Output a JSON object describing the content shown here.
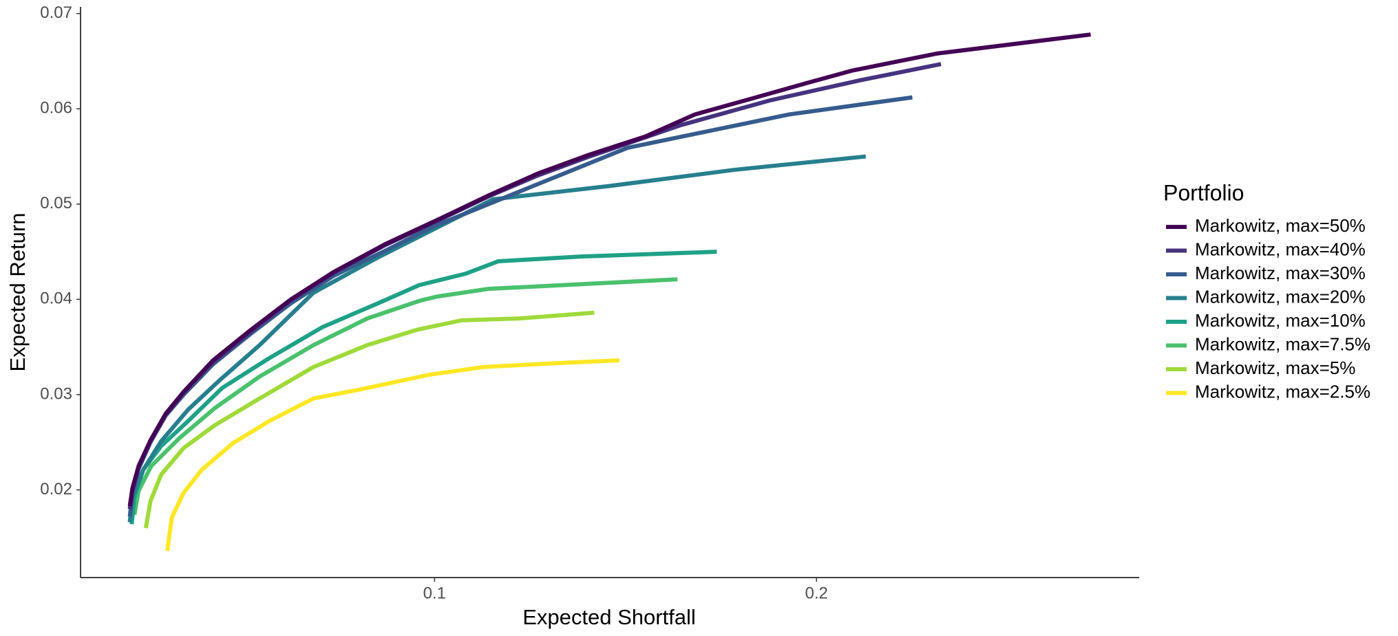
{
  "chart_data": {
    "type": "line",
    "x_label": "Expected Shortfall",
    "y_label": "Expected Return",
    "legend_title": "Portfolio",
    "xlim": [
      0.0073,
      0.2845
    ],
    "ylim": [
      0.0108,
      0.0707
    ],
    "xticks": [
      0.1,
      0.2
    ],
    "yticks": [
      0.02,
      0.03,
      0.04,
      0.05,
      0.06,
      0.07
    ],
    "grid": false,
    "legend": "right",
    "series": [
      {
        "name": "Markowitz, max=50%",
        "color": "#440154",
        "x": [
          0.0202,
          0.0209,
          0.0225,
          0.0256,
          0.0296,
          0.0343,
          0.042,
          0.0519,
          0.0624,
          0.0737,
          0.0871,
          0.1,
          0.1141,
          0.127,
          0.1399,
          0.1552,
          0.1681,
          0.1833,
          0.1974,
          0.2092,
          0.2315,
          0.2718
        ],
        "values": [
          0.0183,
          0.0202,
          0.0225,
          0.0252,
          0.028,
          0.0303,
          0.0336,
          0.0368,
          0.04,
          0.0429,
          0.0458,
          0.0482,
          0.0509,
          0.0532,
          0.0551,
          0.0571,
          0.0594,
          0.0611,
          0.0627,
          0.064,
          0.0658,
          0.0678
        ]
      },
      {
        "name": "Markowitz, max=40%",
        "color": "#46337E",
        "x": [
          0.0202,
          0.0209,
          0.0225,
          0.0256,
          0.0296,
          0.0343,
          0.042,
          0.0519,
          0.0624,
          0.0737,
          0.0871,
          0.1,
          0.1141,
          0.127,
          0.1399,
          0.1646,
          0.188,
          0.2115,
          0.2326
        ],
        "values": [
          0.018,
          0.02,
          0.0224,
          0.0251,
          0.0279,
          0.0302,
          0.0334,
          0.0366,
          0.0399,
          0.0428,
          0.0457,
          0.0481,
          0.0508,
          0.053,
          0.0549,
          0.0583,
          0.0609,
          0.063,
          0.0647
        ]
      },
      {
        "name": "Markowitz, max=30%",
        "color": "#365C8D",
        "x": [
          0.0202,
          0.0209,
          0.0225,
          0.0256,
          0.0296,
          0.0343,
          0.042,
          0.0519,
          0.0624,
          0.0737,
          0.0871,
          0.1,
          0.1246,
          0.1505,
          0.1927,
          0.2251
        ],
        "values": [
          0.0172,
          0.0196,
          0.0222,
          0.025,
          0.0278,
          0.03,
          0.0332,
          0.0364,
          0.0396,
          0.0425,
          0.0451,
          0.0477,
          0.0517,
          0.0559,
          0.0594,
          0.0612
        ]
      },
      {
        "name": "Markowitz, max=20%",
        "color": "#277F8E",
        "x": [
          0.0202,
          0.0209,
          0.0237,
          0.0284,
          0.0354,
          0.0437,
          0.0542,
          0.0683,
          0.0847,
          0.1,
          0.1153,
          0.1458,
          0.1786,
          0.2129
        ],
        "values": [
          0.0166,
          0.0192,
          0.0221,
          0.0251,
          0.0284,
          0.0315,
          0.0352,
          0.0407,
          0.0443,
          0.0474,
          0.0505,
          0.0519,
          0.0536,
          0.055
        ]
      },
      {
        "name": "Markowitz, max=10%",
        "color": "#1FA187",
        "x": [
          0.0207,
          0.0214,
          0.0237,
          0.0284,
          0.0354,
          0.0444,
          0.0566,
          0.0707,
          0.0847,
          0.096,
          0.1082,
          0.1167,
          0.1387,
          0.1739
        ],
        "values": [
          0.0164,
          0.0192,
          0.0221,
          0.0246,
          0.0272,
          0.0307,
          0.0338,
          0.0371,
          0.0395,
          0.0415,
          0.0427,
          0.044,
          0.0445,
          0.045
        ]
      },
      {
        "name": "Markowitz, max=7.5%",
        "color": "#4AC16D",
        "x": [
          0.0214,
          0.0225,
          0.0258,
          0.0331,
          0.0425,
          0.0542,
          0.0683,
          0.0824,
          0.0965,
          0.1007,
          0.1141,
          0.1387,
          0.1636
        ],
        "values": [
          0.0174,
          0.0199,
          0.0225,
          0.0254,
          0.0286,
          0.0319,
          0.0352,
          0.038,
          0.0399,
          0.0403,
          0.0411,
          0.0416,
          0.0421
        ]
      },
      {
        "name": "Markowitz, max=5%",
        "color": "#9FDA3A",
        "x": [
          0.0244,
          0.0256,
          0.0284,
          0.0343,
          0.0425,
          0.0542,
          0.0683,
          0.0824,
          0.0953,
          0.107,
          0.1223,
          0.1418
        ],
        "values": [
          0.016,
          0.0188,
          0.0216,
          0.0244,
          0.0268,
          0.0296,
          0.0329,
          0.0352,
          0.0368,
          0.0378,
          0.038,
          0.0386
        ]
      },
      {
        "name": "Markowitz, max=2.5%",
        "color": "#FDE725",
        "x": [
          0.03,
          0.0312,
          0.0343,
          0.039,
          0.0472,
          0.0566,
          0.0683,
          0.08,
          0.0988,
          0.1129,
          0.1317,
          0.1484
        ],
        "values": [
          0.0136,
          0.0171,
          0.0197,
          0.0221,
          0.0249,
          0.0272,
          0.0296,
          0.0305,
          0.0321,
          0.0329,
          0.0333,
          0.0336
        ]
      }
    ]
  }
}
